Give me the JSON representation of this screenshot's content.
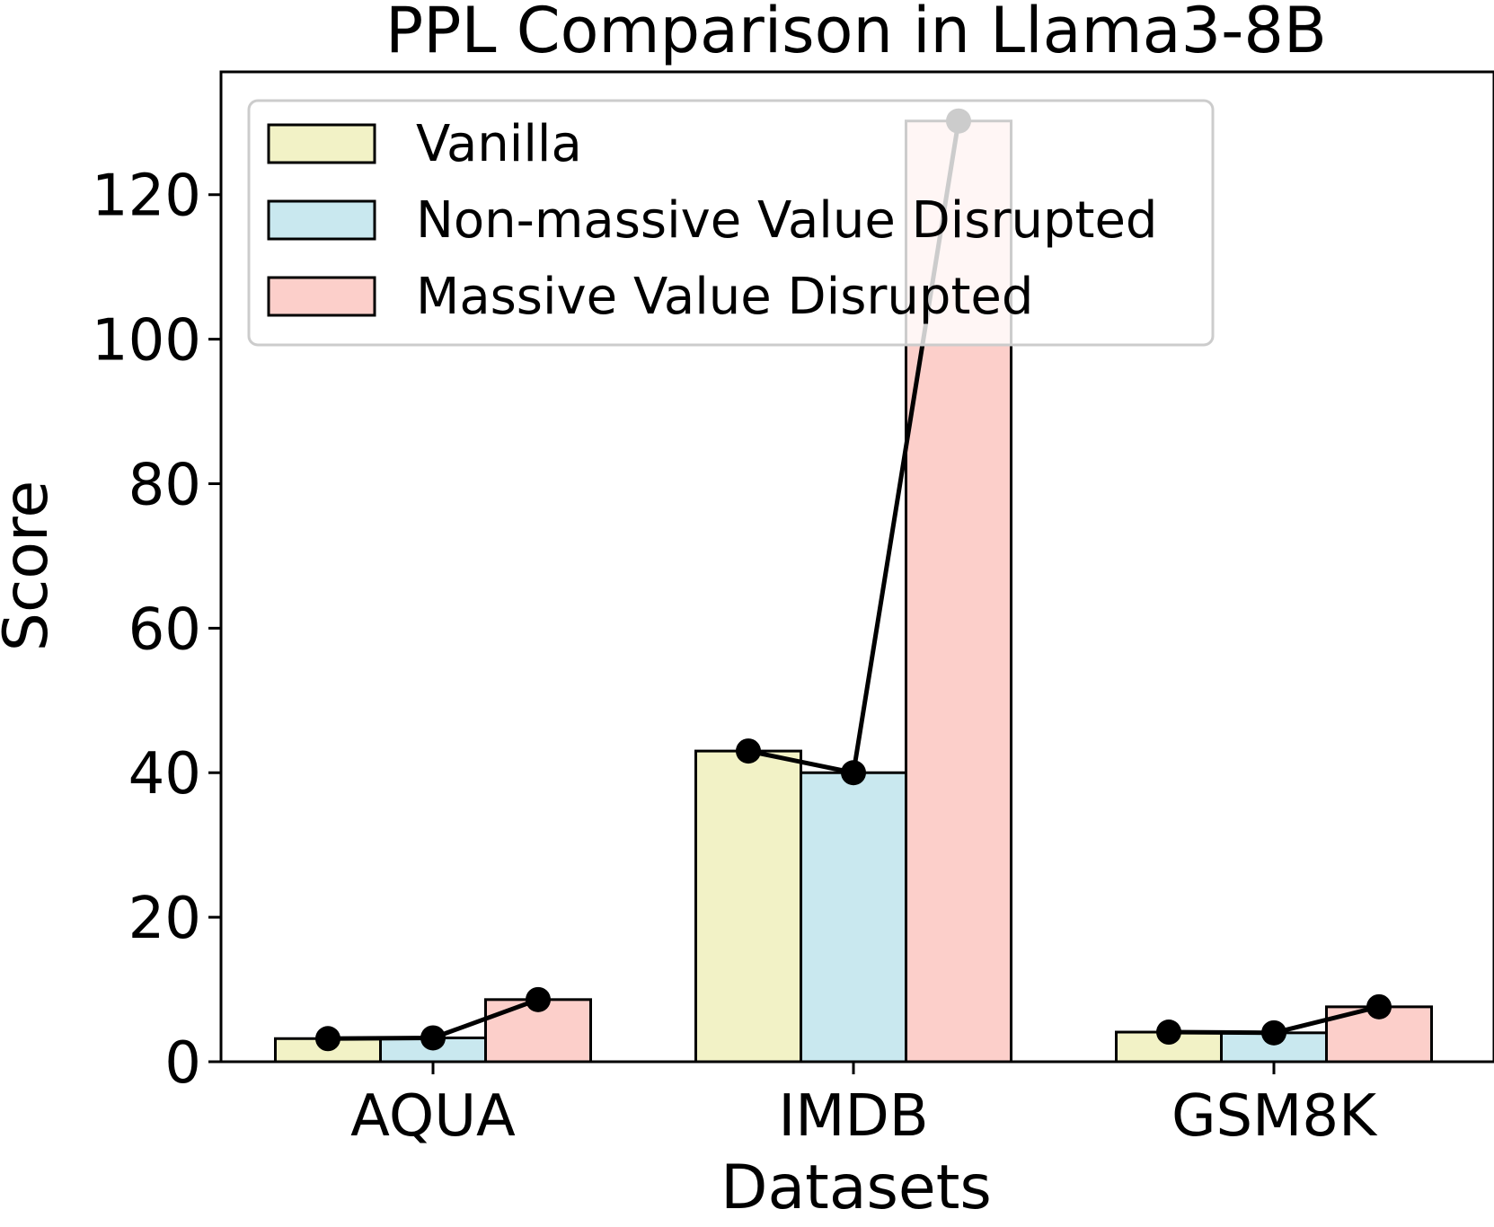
{
  "chart_data": {
    "type": "bar",
    "title": "PPL Comparison in Llama3-8B",
    "xlabel": "Datasets",
    "ylabel": "Score",
    "categories": [
      "AQUA",
      "IMDB",
      "GSM8K"
    ],
    "ylim": [
      0,
      137
    ],
    "yticks": [
      0,
      20,
      40,
      60,
      80,
      100,
      120
    ],
    "grid": false,
    "legend_position": "upper-left",
    "series": [
      {
        "name": "Vanilla",
        "values": [
          3.2,
          43.0,
          4.1
        ],
        "color": "#f2f2c6"
      },
      {
        "name": "Non-massive Value Disrupted",
        "values": [
          3.3,
          40.0,
          4.0
        ],
        "color": "#c9e8ef"
      },
      {
        "name": "Massive Value Disrupted",
        "values": [
          8.6,
          130.2,
          7.6
        ],
        "color": "#fccfca"
      }
    ],
    "overlay_line": {
      "color": "#000000",
      "marker": "circle"
    }
  }
}
